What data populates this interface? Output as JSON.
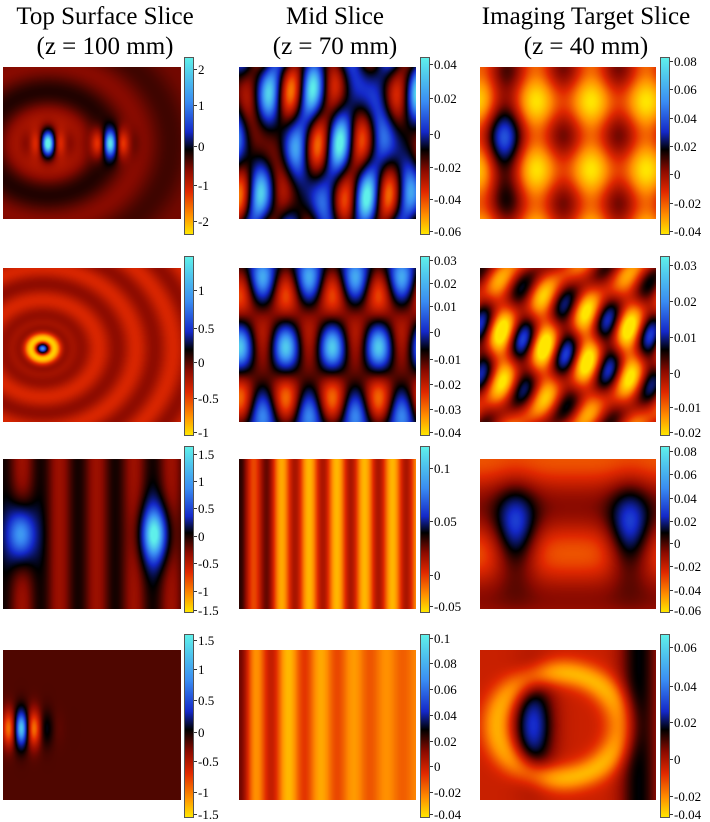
{
  "columns": [
    {
      "title_line1": "Top Surface Slice",
      "title_line2": "(z = 100 mm)"
    },
    {
      "title_line1": "Mid Slice",
      "title_line2": "(z = 70 mm)"
    },
    {
      "title_line1": "Imaging Target Slice",
      "title_line2": "(z = 40 mm)"
    }
  ],
  "colormap": [
    "#ffe600",
    "#ff8c00",
    "#e02800",
    "#8a0a00",
    "#000000",
    "#1428c8",
    "#3a8cf2",
    "#5ff0ea"
  ],
  "panels": [
    {
      "id": "r1c1",
      "colorbar_ticks": [
        "2",
        "1",
        "0",
        "-1",
        "-2"
      ],
      "tick_fracs": [
        0.07,
        0.27,
        0.5,
        0.72,
        0.92
      ]
    },
    {
      "id": "r1c2",
      "colorbar_ticks": [
        "0.04",
        "0.02",
        "0",
        "-0.02",
        "-0.04",
        "-0.06"
      ],
      "tick_fracs": [
        0.04,
        0.23,
        0.43,
        0.62,
        0.8,
        0.98
      ]
    },
    {
      "id": "r1c3",
      "colorbar_ticks": [
        "0.08",
        "0.06",
        "0.04",
        "0.02",
        "0",
        "-0.02",
        "-0.04"
      ],
      "tick_fracs": [
        0.02,
        0.18,
        0.34,
        0.5,
        0.66,
        0.82,
        0.98
      ]
    },
    {
      "id": "r2c1",
      "colorbar_ticks": [
        "1",
        "0.5",
        "0",
        "-0.5",
        "-1"
      ],
      "tick_fracs": [
        0.19,
        0.4,
        0.59,
        0.79,
        0.98
      ]
    },
    {
      "id": "r2c2",
      "colorbar_ticks": [
        "0.03",
        "0.02",
        "0.01",
        "0",
        "-0.01",
        "-0.02",
        "-0.03",
        "-0.04"
      ],
      "tick_fracs": [
        0.02,
        0.15,
        0.28,
        0.42,
        0.57,
        0.71,
        0.85,
        0.98
      ]
    },
    {
      "id": "r2c3",
      "colorbar_ticks": [
        "0.03",
        "0.02",
        "0.01",
        "0",
        "-0.01",
        "-0.02"
      ],
      "tick_fracs": [
        0.05,
        0.25,
        0.45,
        0.65,
        0.84,
        0.98
      ]
    },
    {
      "id": "r3c1",
      "colorbar_ticks": [
        "1.5",
        "1",
        "0.5",
        "0",
        "-0.5",
        "-1",
        "-1.5"
      ],
      "tick_fracs": [
        0.05,
        0.21,
        0.37,
        0.54,
        0.7,
        0.87,
        0.98
      ]
    },
    {
      "id": "r3c2",
      "colorbar_ticks": [
        "0.1",
        "0.05",
        "0",
        "-0.05"
      ],
      "tick_fracs": [
        0.13,
        0.45,
        0.77,
        0.96
      ]
    },
    {
      "id": "r3c3",
      "colorbar_ticks": [
        "0.08",
        "0.06",
        "0.04",
        "0.02",
        "0",
        "-0.02",
        "-0.04",
        "-0.06"
      ],
      "tick_fracs": [
        0.03,
        0.17,
        0.31,
        0.45,
        0.58,
        0.72,
        0.86,
        0.98
      ]
    },
    {
      "id": "r4c1",
      "colorbar_ticks": [
        "1.5",
        "1",
        "0.5",
        "0",
        "-0.5",
        "-1",
        "-1.5"
      ],
      "tick_fracs": [
        0.03,
        0.19,
        0.36,
        0.53,
        0.69,
        0.86,
        0.98
      ]
    },
    {
      "id": "r4c2",
      "colorbar_ticks": [
        "0.1",
        "0.08",
        "0.06",
        "0.04",
        "0.02",
        "0",
        "-0.02",
        "-0.04"
      ],
      "tick_fracs": [
        0.02,
        0.16,
        0.3,
        0.44,
        0.58,
        0.72,
        0.86,
        0.98
      ]
    },
    {
      "id": "r4c3",
      "colorbar_ticks": [
        "0.06",
        "0.04",
        "0.02",
        "0",
        "-0.02",
        "-0.04"
      ],
      "tick_fracs": [
        0.07,
        0.28,
        0.48,
        0.68,
        0.88,
        0.98
      ]
    }
  ]
}
